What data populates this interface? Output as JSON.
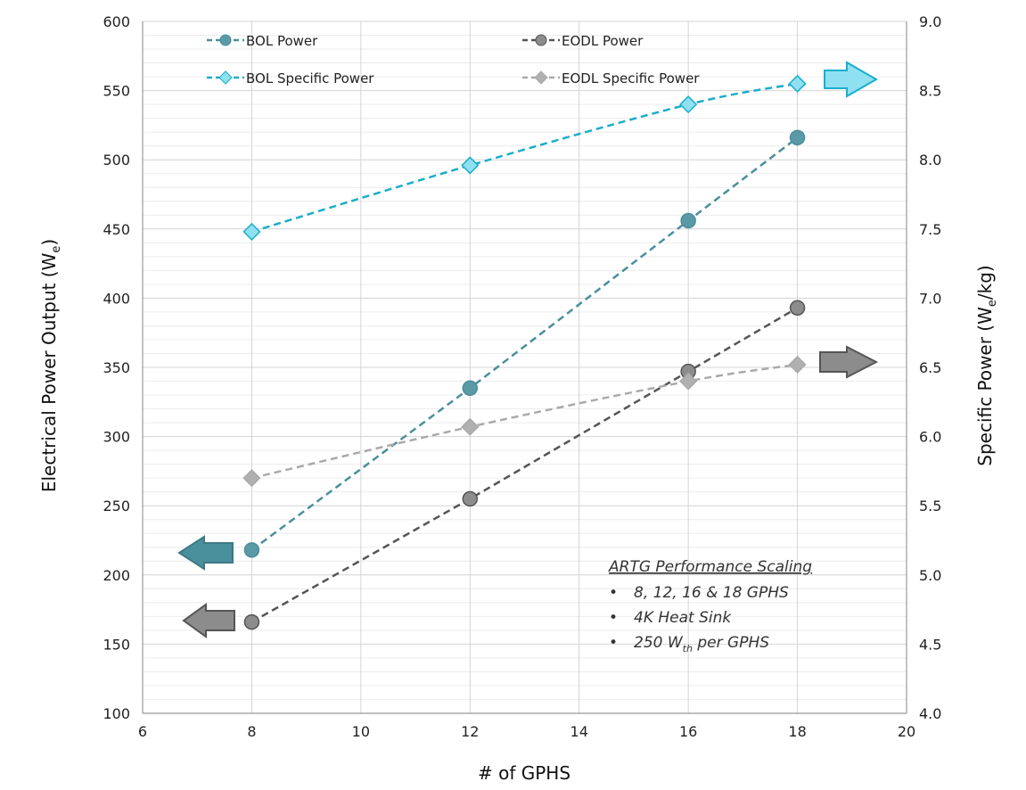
{
  "chart_data": {
    "type": "line",
    "xlabel": "# of GPHS",
    "ylabel_left": "Electrical Power Output (W",
    "ylabel_left_sub": "e",
    "ylabel_left_close": ")",
    "ylabel_right": "Specific Power (W",
    "ylabel_right_sub": "e",
    "ylabel_right_close": "/kg)",
    "xlim": [
      6,
      20
    ],
    "x_ticks": [
      "6",
      "8",
      "10",
      "12",
      "14",
      "16",
      "18",
      "20"
    ],
    "ylim_left": [
      100,
      600
    ],
    "y_left_ticks": [
      "100",
      "150",
      "200",
      "250",
      "300",
      "350",
      "400",
      "450",
      "500",
      "550",
      "600"
    ],
    "ylim_right": [
      4.0,
      9.0
    ],
    "y_right_ticks": [
      "4.0",
      "4.5",
      "5.0",
      "5.5",
      "6.0",
      "6.5",
      "7.0",
      "7.5",
      "8.0",
      "8.5",
      "9.0"
    ],
    "grid": true,
    "legend_position": "top",
    "x": [
      8,
      12,
      16,
      18
    ],
    "series": [
      {
        "name": "BOL Power",
        "axis": "left",
        "marker": "circle",
        "color": "#4a8f9c",
        "values": [
          218,
          335,
          456,
          516
        ]
      },
      {
        "name": "EODL Power",
        "axis": "left",
        "marker": "circle",
        "color": "#555555",
        "values": [
          166,
          255,
          347,
          393
        ]
      },
      {
        "name": "BOL Specific Power",
        "axis": "right",
        "marker": "diamond",
        "color": "#1aaecb",
        "values": [
          7.48,
          7.96,
          8.4,
          8.55
        ]
      },
      {
        "name": "EODL Specific Power",
        "axis": "right",
        "marker": "diamond",
        "color": "#aaaaaa",
        "values": [
          5.7,
          6.07,
          6.4,
          6.52
        ]
      }
    ],
    "annotation": {
      "title": "ARTG Performance Scaling",
      "items": [
        {
          "text": "8, 12, 16 & 18 GPHS",
          "sub": "",
          "after": ""
        },
        {
          "text": "4K Heat Sink",
          "sub": "",
          "after": ""
        },
        {
          "text": "250 W",
          "sub": "th",
          "after": " per GPHS"
        }
      ],
      "bullet": "•"
    }
  }
}
